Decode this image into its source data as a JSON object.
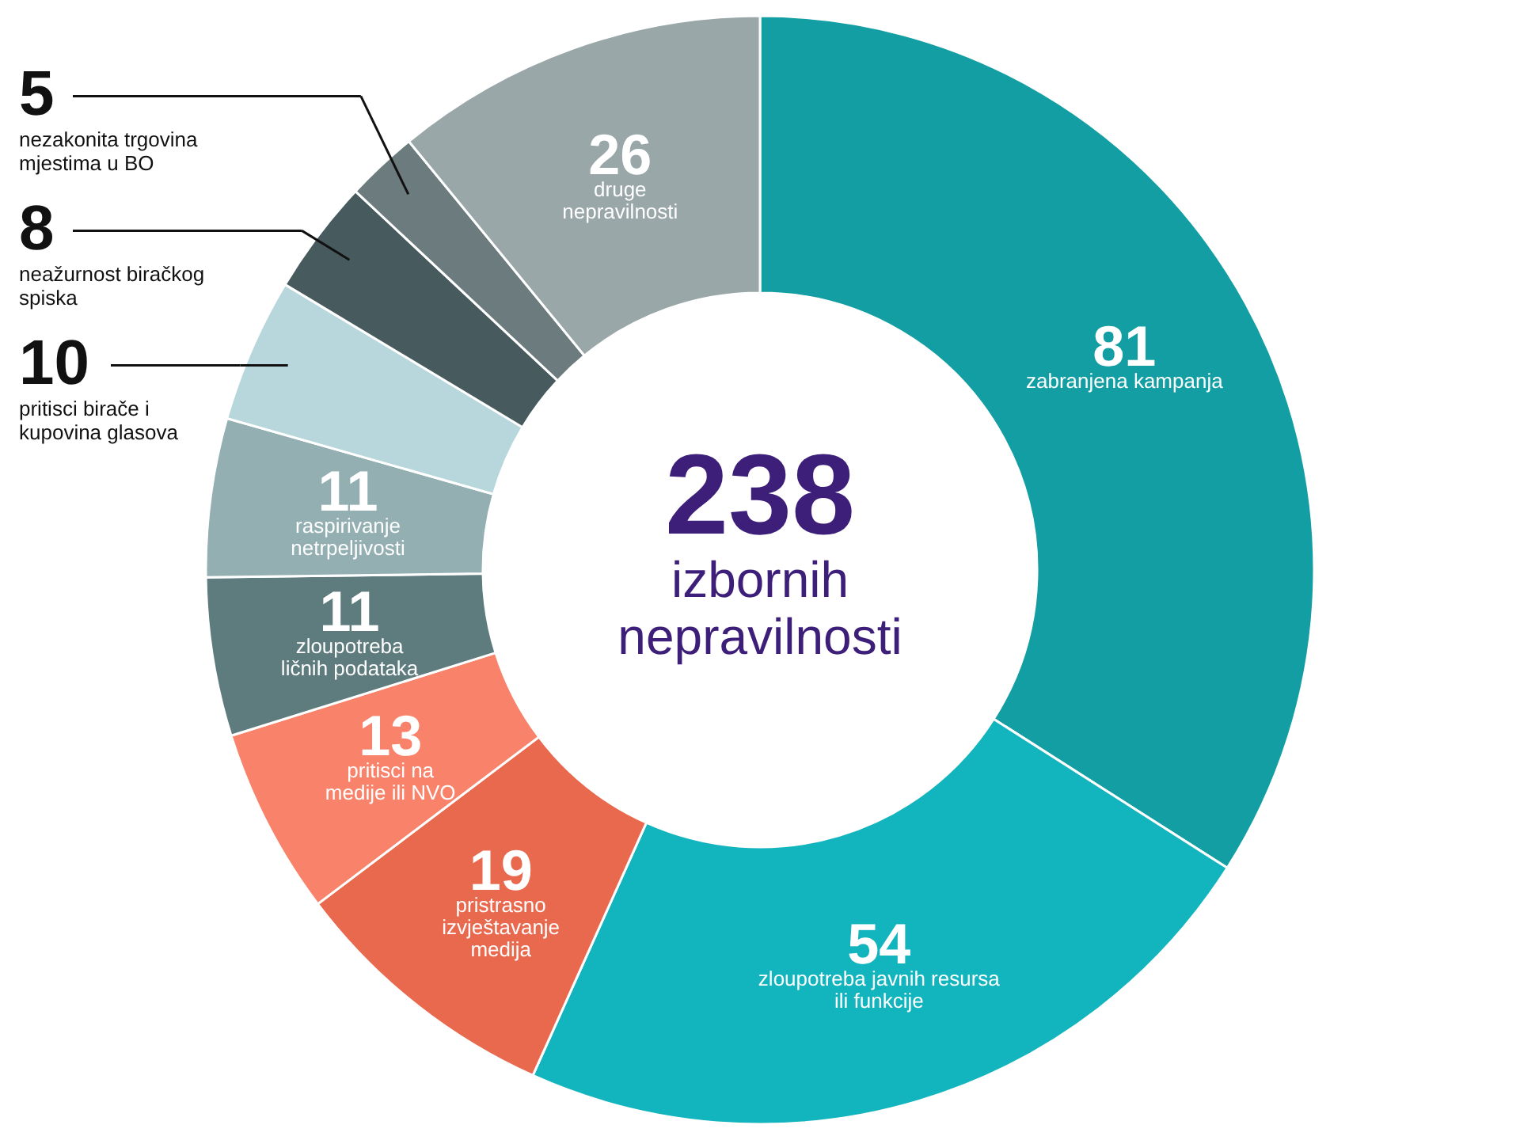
{
  "chart_data": {
    "type": "donut",
    "title": "238",
    "subtitle": "izbornih nepravilnosti",
    "categories": [
      "zabranjena kampanja",
      "zloupotreba javnih resursa ili funkcije",
      "pristrasno izvještavanje medija",
      "pritisci na medije ili NVO",
      "zloupotreba ličnih podataka",
      "raspirivanje netrpeljivosti",
      "pritisci birače i kupovina glasova",
      "neažurnost biračkog spiska",
      "nezakonita trgovina mjestima u BO",
      "druge nepravilnosti"
    ],
    "values": [
      81,
      54,
      19,
      13,
      11,
      11,
      10,
      8,
      5,
      26
    ],
    "colors": [
      "#129ea3",
      "#12b4bd",
      "#e8694e",
      "#f8826a",
      "#5e7b7e",
      "#93afb2",
      "#b7d7dc",
      "#475a5e",
      "#6c7c7e",
      "#9aa7a8"
    ],
    "data_labels": true,
    "legend": false
  }
}
